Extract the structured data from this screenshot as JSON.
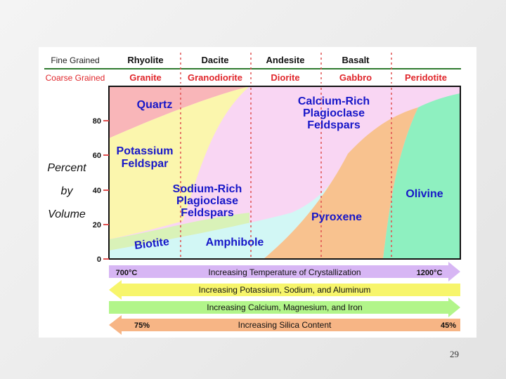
{
  "header": {
    "fine_label": "Fine Grained",
    "coarse_label": "Coarse Grained",
    "fine_rocks": [
      "Rhyolite",
      "Dacite",
      "Andesite",
      "Basalt"
    ],
    "coarse_rocks": [
      "Granite",
      "Granodiorite",
      "Diorite",
      "Gabbro",
      "Peridotite"
    ]
  },
  "axis": {
    "ylabel_lines": [
      "Percent",
      "by",
      "Volume"
    ],
    "ticks": [
      "80",
      "60",
      "40",
      "20",
      "0"
    ]
  },
  "minerals": {
    "quartz": "Quartz",
    "potassium_feldspar": [
      "Potassium",
      "Feldspar"
    ],
    "calcium_plagioclase": [
      "Calcium-Rich",
      "Plagioclase",
      "Feldspars"
    ],
    "sodium_plagioclase": [
      "Sodium-Rich",
      "Plagioclase",
      "Feldspars"
    ],
    "biotite": "Biotite",
    "amphibole": "Amphibole",
    "pyroxene": "Pyroxene",
    "olivine": "Olivine"
  },
  "arrows": {
    "temperature": {
      "label": "Increasing Temperature of Crystallization",
      "left": "700°C",
      "right": "1200°C"
    },
    "potassium": {
      "label": "Increasing Potassium, Sodium, and Aluminum"
    },
    "calcium": {
      "label": "Increasing Calcium, Magnesium, and Iron"
    },
    "silica": {
      "label": "Increasing Silica Content",
      "left": "75%",
      "right": "45%"
    }
  },
  "colors": {
    "quartz": "#f9b6b9",
    "potassium_feldspar": "#fbf6ad",
    "plagioclase": "#f9d6f3",
    "biotite": "#d9f2b8",
    "amphibole": "#d2f7f5",
    "pyroxene": "#f8c28f",
    "olivine": "#8ef0c0",
    "mineral_text": "#1717c8",
    "coarse_text": "#e0262b",
    "header_rule": "#2f7a2f",
    "divider": "#e05050",
    "temperature_arrow": "#d7b6f4",
    "potassium_arrow": "#f7f56b",
    "calcium_arrow": "#b2f58a",
    "silica_arrow": "#f7b585"
  },
  "slide": {
    "number": "29"
  }
}
